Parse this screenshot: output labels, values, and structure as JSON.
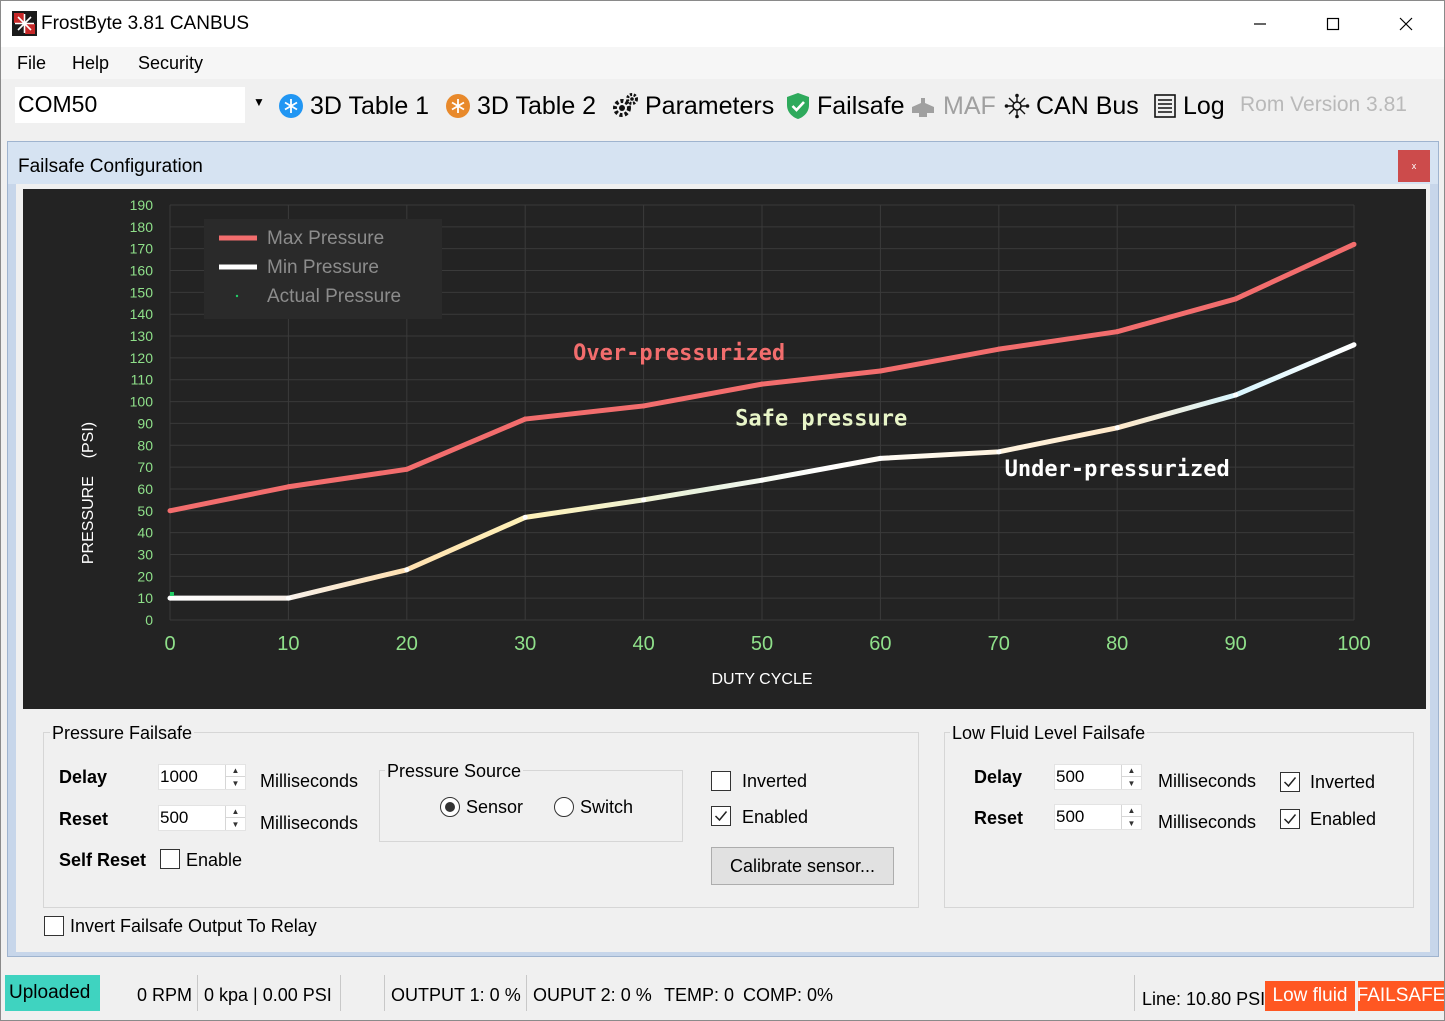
{
  "window": {
    "title": "FrostByte 3.81 CANBUS"
  },
  "menu": {
    "file": "File",
    "help": "Help",
    "security": "Security"
  },
  "toolbar": {
    "port": "COM50",
    "table1": "3D Table 1",
    "table2": "3D Table 2",
    "parameters": "Parameters",
    "failsafe": "Failsafe",
    "maf": "MAF",
    "canbus": "CAN Bus",
    "log": "Log",
    "rom_version": "Rom Version 3.81"
  },
  "panel": {
    "title": "Failsafe Configuration"
  },
  "chart_data": {
    "type": "line",
    "xlabel": "DUTY CYCLE",
    "ylabel": "PRESSURE    (PSI)",
    "x": [
      0,
      10,
      20,
      30,
      40,
      50,
      60,
      70,
      80,
      90,
      100
    ],
    "xlim": [
      0,
      100
    ],
    "ylim": [
      0,
      190
    ],
    "x_ticks": [
      "0",
      "10",
      "20",
      "30",
      "40",
      "50",
      "60",
      "70",
      "80",
      "90",
      "100"
    ],
    "y_ticks": [
      "0",
      "10",
      "20",
      "30",
      "40",
      "50",
      "60",
      "70",
      "80",
      "90",
      "100",
      "110",
      "120",
      "130",
      "140",
      "150",
      "160",
      "170",
      "180",
      "190"
    ],
    "grid": true,
    "legend_position": "top-left",
    "series": [
      {
        "name": "Max Pressure",
        "color": "#f26d6d",
        "values": [
          50,
          61,
          69,
          92,
          98,
          108,
          114,
          124,
          132,
          147,
          172
        ]
      },
      {
        "name": "Min Pressure",
        "color": "#ffffff",
        "values": [
          10,
          10,
          23,
          47,
          55,
          64,
          74,
          77,
          88,
          103,
          126
        ]
      },
      {
        "name": "Actual Pressure",
        "color": "#22cc66",
        "points": [
          [
            0,
            11
          ]
        ]
      }
    ],
    "annotations": [
      {
        "text": "Over-pressurized",
        "x": 43,
        "y": 119,
        "color": "#f26d6d"
      },
      {
        "text": "Safe pressure",
        "x": 55,
        "y": 89,
        "color": "#e8f5c8"
      },
      {
        "text": "Under-pressurized",
        "x": 80,
        "y": 66,
        "color": "#ffffff"
      }
    ]
  },
  "pressure_failsafe": {
    "title": "Pressure Failsafe",
    "delay_label": "Delay",
    "delay_value": "1000",
    "delay_unit": "Milliseconds",
    "reset_label": "Reset",
    "reset_value": "500",
    "reset_unit": "Milliseconds",
    "self_reset_label": "Self Reset",
    "self_reset_enable": "Enable",
    "source_title": "Pressure Source",
    "source_sensor": "Sensor",
    "source_switch": "Switch",
    "inverted": "Inverted",
    "enabled": "Enabled",
    "calibrate": "Calibrate sensor..."
  },
  "invert_relay": "Invert Failsafe Output To Relay",
  "low_fluid": {
    "title": "Low  Fluid Level Failsafe",
    "delay_label": "Delay",
    "delay_value": "500",
    "delay_unit": "Milliseconds",
    "reset_label": "Reset",
    "reset_value": "500",
    "reset_unit": "Milliseconds",
    "inverted": "Inverted",
    "enabled": "Enabled"
  },
  "status": {
    "uploaded": "Uploaded",
    "rpm": "0 RPM",
    "kpa_psi": "0 kpa | 0.00 PSI",
    "output1": "OUTPUT 1: 0 %",
    "output2": "OUPUT 2: 0 %",
    "temp": "TEMP: 0",
    "comp": "COMP: 0%",
    "line": "Line: 10.80 PSI",
    "low_fluid": "Low fluid",
    "failsafe": "FAILSAFE"
  }
}
